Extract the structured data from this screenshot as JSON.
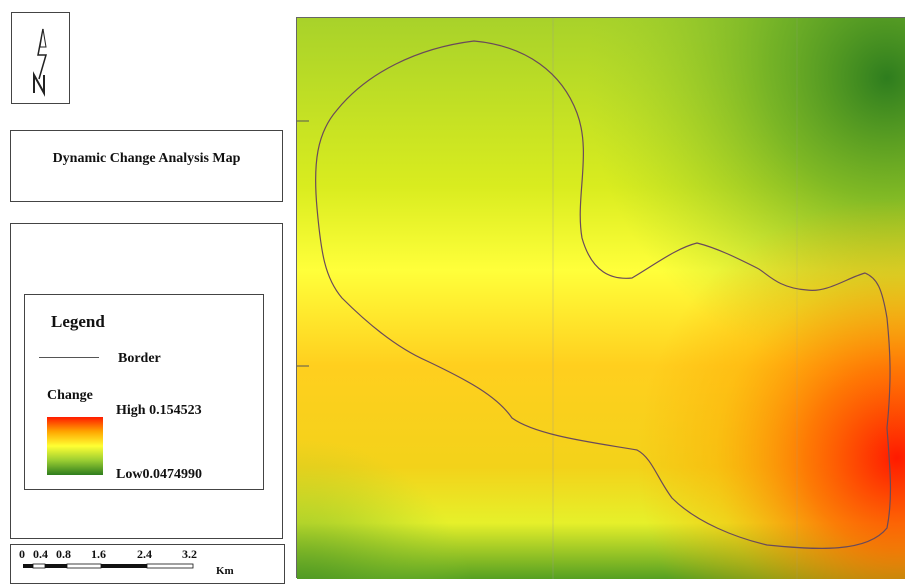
{
  "map": {
    "title": "Dynamic Change Analysis Map",
    "north_arrow_icon": "north-arrow-icon",
    "legend": {
      "heading": "Legend",
      "border_label": "Border",
      "change_label": "Change",
      "high_label": "High 0.154523",
      "low_label": "Low0.0474990",
      "ramp_colors": [
        "#ff1a00",
        "#ffa500",
        "#ffff33",
        "#9acd32",
        "#2e7d1e"
      ]
    },
    "scale_bar": {
      "ticks": [
        "0",
        "0.4",
        "0.8",
        "1.6",
        "2.4",
        "3.2"
      ],
      "unit": "Km"
    }
  }
}
